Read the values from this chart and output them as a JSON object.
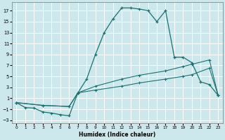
{
  "bg_color": "#cce8ed",
  "grid_color": "#ffffff",
  "line_color": "#1a7070",
  "xlabel": "Humidex (Indice chaleur)",
  "xlim": [
    -0.5,
    23.5
  ],
  "ylim": [
    -3.5,
    18.5
  ],
  "xticks": [
    0,
    1,
    2,
    3,
    4,
    5,
    6,
    7,
    8,
    9,
    10,
    11,
    12,
    13,
    14,
    15,
    16,
    17,
    18,
    19,
    20,
    21,
    22,
    23
  ],
  "yticks": [
    -3,
    -1,
    1,
    3,
    5,
    7,
    9,
    11,
    13,
    15,
    17
  ],
  "line1_x": [
    0,
    1,
    2,
    3,
    4,
    5,
    6,
    7,
    8,
    9,
    10,
    11,
    12,
    13,
    14,
    15,
    16,
    17,
    18,
    19,
    20,
    21,
    22,
    23
  ],
  "line1_y": [
    0.2,
    -0.7,
    -0.8,
    -1.5,
    -1.7,
    -2.0,
    -2.2,
    2.0,
    4.5,
    9.0,
    13.0,
    15.5,
    17.5,
    17.5,
    17.3,
    17.0,
    15.0,
    17.0,
    8.5,
    8.5,
    7.5,
    4.0,
    3.5,
    1.5
  ],
  "line2_x": [
    0,
    3,
    6,
    7,
    9,
    12,
    14,
    17,
    19,
    20,
    22,
    23
  ],
  "line2_y": [
    0.2,
    -0.3,
    -0.5,
    2.0,
    3.2,
    4.5,
    5.2,
    6.0,
    6.8,
    7.2,
    8.0,
    1.5
  ],
  "line3_x": [
    0,
    3,
    6,
    7,
    9,
    12,
    14,
    17,
    19,
    20,
    22,
    23
  ],
  "line3_y": [
    0.2,
    -0.3,
    -0.5,
    2.0,
    2.5,
    3.2,
    3.8,
    4.5,
    5.0,
    5.3,
    6.5,
    1.5
  ]
}
